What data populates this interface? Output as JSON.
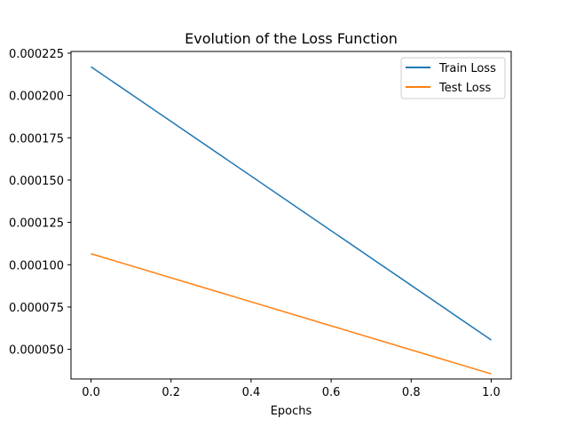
{
  "chart_data": {
    "type": "line",
    "title": "Evolution of the Loss Function",
    "xlabel": "Epochs",
    "ylabel": "",
    "xlim": [
      -0.05,
      1.05
    ],
    "ylim": [
      3.25e-05,
      0.000226
    ],
    "xticks": [
      0.0,
      0.2,
      0.4,
      0.6,
      0.8,
      1.0
    ],
    "xtick_labels": [
      "0.0",
      "0.2",
      "0.4",
      "0.6",
      "0.8",
      "1.0"
    ],
    "yticks": [
      5e-05,
      7.5e-05,
      0.0001,
      0.000125,
      0.00015,
      0.000175,
      0.0002,
      0.000225
    ],
    "ytick_labels": [
      "0.000050",
      "0.000075",
      "0.000100",
      "0.000125",
      "0.000150",
      "0.000175",
      "0.000200",
      "0.000225"
    ],
    "grid": false,
    "legend_position": "top-right",
    "series": [
      {
        "name": "Train Loss",
        "color": "#1f77b4",
        "x": [
          0,
          1
        ],
        "y": [
          0.000217,
          5.55e-05
        ]
      },
      {
        "name": "Test Loss",
        "color": "#ff7f0e",
        "x": [
          0,
          1
        ],
        "y": [
          0.0001065,
          3.55e-05
        ]
      }
    ]
  }
}
